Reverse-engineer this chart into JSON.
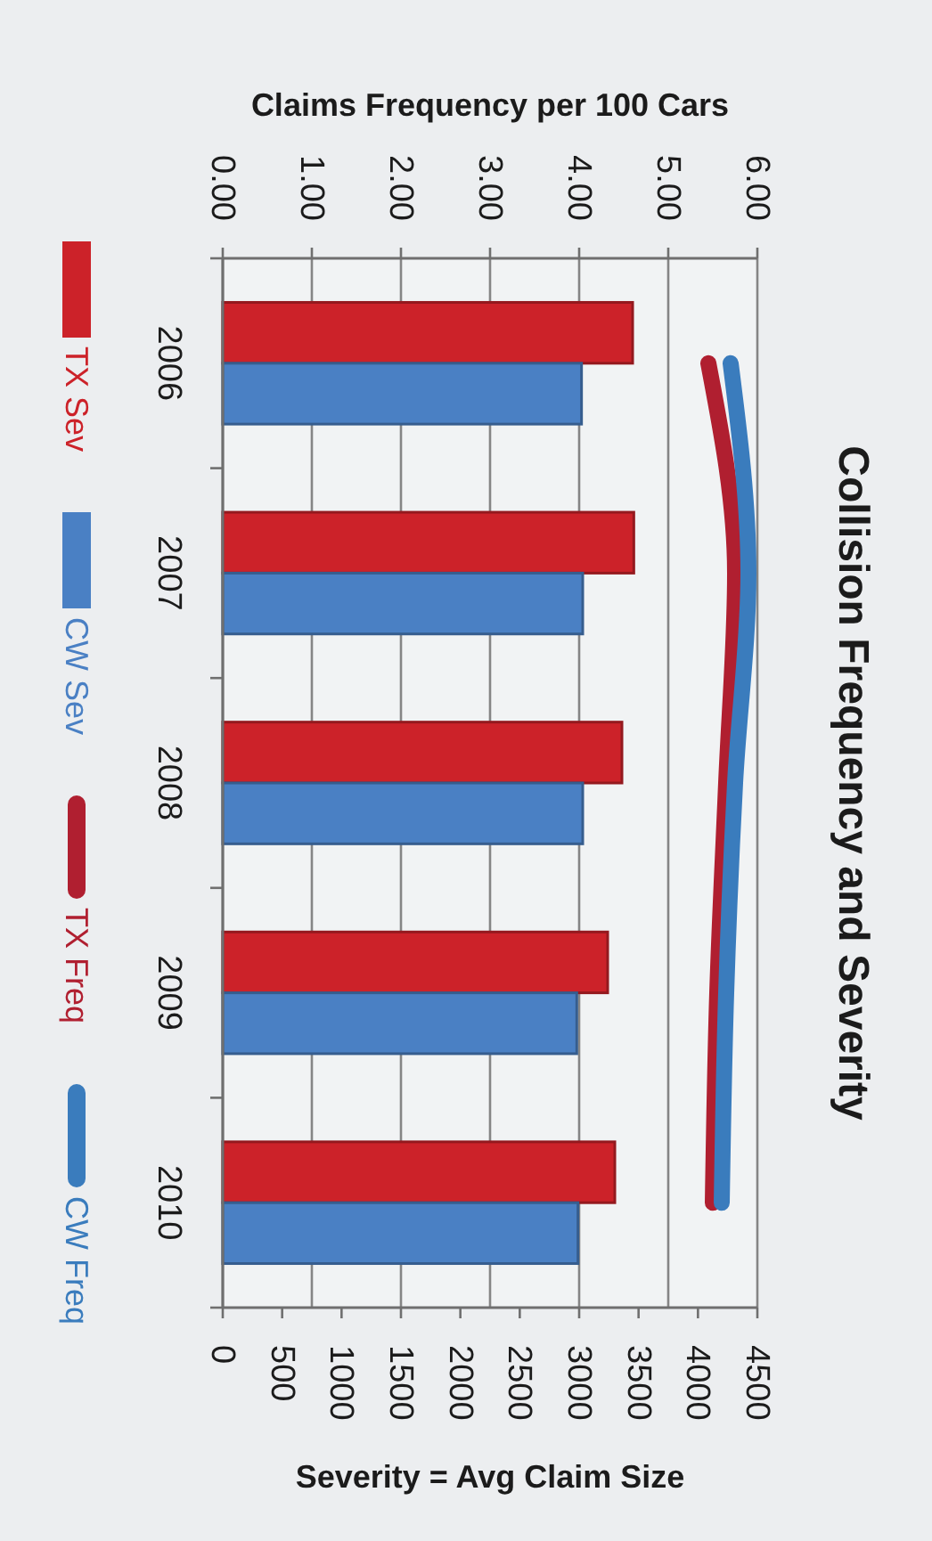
{
  "chart_data": {
    "type": "bar",
    "orientation": "horizontal",
    "title": "Collision Frequency and Severity",
    "categories": [
      "2006",
      "2007",
      "2008",
      "2009",
      "2010"
    ],
    "series": [
      {
        "name": "TX Sev",
        "color": "#cc2229",
        "values": [
          3450,
          3460,
          3360,
          3240,
          3300
        ]
      },
      {
        "name": "CW Sev",
        "color": "#4a80c4",
        "values": [
          3020,
          3030,
          3030,
          2980,
          2990
        ]
      },
      {
        "name": "TX Freq",
        "type": "line",
        "axis": "x2",
        "color": "#b01f30",
        "values": [
          5.45,
          5.75,
          5.65,
          5.55,
          5.5
        ]
      },
      {
        "name": "CW Freq",
        "type": "line",
        "axis": "x2",
        "color": "#3a7cbd",
        "values": [
          5.7,
          5.9,
          5.75,
          5.65,
          5.6
        ]
      }
    ],
    "xlabel": "Severity = Avg Claim Size",
    "xlim": [
      0,
      4500
    ],
    "xticks": [
      0,
      500,
      1000,
      1500,
      2000,
      2500,
      3000,
      3500,
      4000,
      4500
    ],
    "x2label": "Claims Frequency per 100 Cars",
    "x2lim": [
      0,
      6
    ],
    "x2ticks": [
      {
        "value": 0,
        "label": "0.00"
      },
      {
        "value": 1,
        "label": "1.00"
      },
      {
        "value": 2,
        "label": "2.00"
      },
      {
        "value": 3,
        "label": "3.00"
      },
      {
        "value": 4,
        "label": "4.00"
      },
      {
        "value": 5,
        "label": "5.00"
      },
      {
        "value": 6,
        "label": "6.00"
      }
    ],
    "grid": "x",
    "legend": "left"
  }
}
